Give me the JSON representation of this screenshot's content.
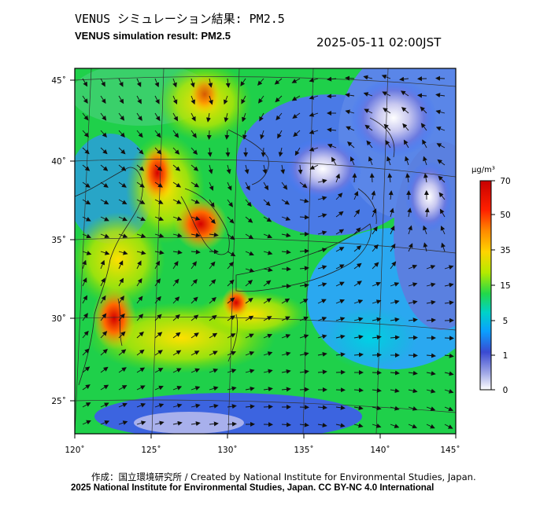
{
  "header": {
    "title_ja": "VENUS シミュレーション結果: PM2.5",
    "title_en": "VENUS simulation result: PM2.5",
    "datetime": "2025-05-11 02:00JST"
  },
  "map": {
    "lon_ticks": [
      "120˚",
      "125˚",
      "130˚",
      "135˚",
      "140˚",
      "145˚"
    ],
    "lat_ticks": [
      "45˚",
      "40˚",
      "35˚",
      "30˚",
      "25˚"
    ],
    "lon_range": [
      120,
      145
    ],
    "lat_range": [
      23,
      46
    ]
  },
  "colorbar": {
    "unit": "μg/m³",
    "labels": [
      "70",
      "50",
      "35",
      "15",
      "5",
      "1",
      "0"
    ],
    "colors": [
      "#ff0000",
      "#ff8a00",
      "#ffd400",
      "#8fe600",
      "#00d24a",
      "#00d2d2",
      "#0a64ff",
      "#3c3cc8",
      "#a0a0e6",
      "#ffffff"
    ]
  },
  "footer": {
    "credit_ja": "作成：国立環境研究所 / Created by National Institute for Environmental Studies, Japan.",
    "copyright": "2025 National Institute for Environmental Studies, Japan. CC BY-NC 4.0 International"
  }
}
